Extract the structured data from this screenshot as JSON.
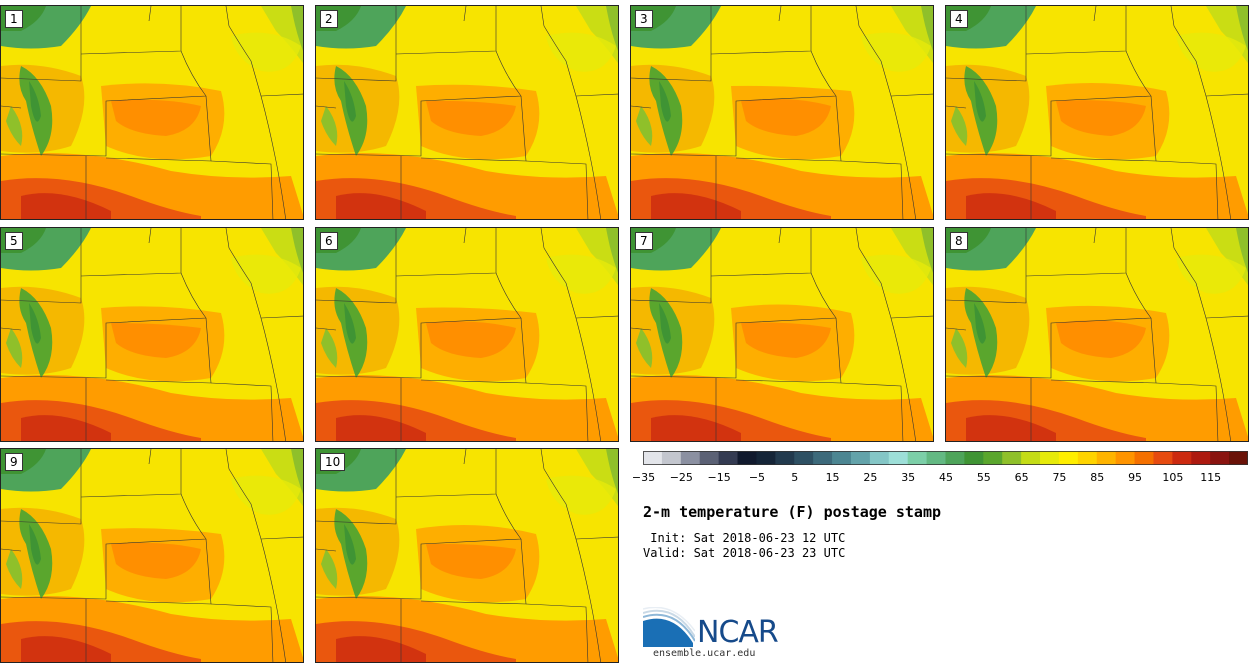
{
  "panels": [
    {
      "label": "1"
    },
    {
      "label": "2"
    },
    {
      "label": "3"
    },
    {
      "label": "4"
    },
    {
      "label": "5"
    },
    {
      "label": "6"
    },
    {
      "label": "7"
    },
    {
      "label": "8"
    },
    {
      "label": "9"
    },
    {
      "label": "10"
    }
  ],
  "colorbar": {
    "colors": [
      "#e3e5ea",
      "#c3c6ce",
      "#8b90a1",
      "#5b6175",
      "#343b52",
      "#111a2e",
      "#152538",
      "#223a4e",
      "#2e5063",
      "#3d6a7b",
      "#4c8692",
      "#63a3aa",
      "#84c6c6",
      "#9ddfd8",
      "#7ccfa8",
      "#63b983",
      "#4ea45a",
      "#3f9434",
      "#5aa62d",
      "#8fc02a",
      "#c4dc16",
      "#e6ea0a",
      "#ffee00",
      "#ffd400",
      "#ffb400",
      "#ff9400",
      "#f57000",
      "#e64b10",
      "#cc2a10",
      "#ad1a10",
      "#8a1410",
      "#6a1208"
    ],
    "ticks": [
      "−35",
      "−25",
      "−15",
      "−5",
      "5",
      "15",
      "25",
      "35",
      "45",
      "55",
      "65",
      "75",
      "85",
      "95",
      "105",
      "115"
    ]
  },
  "title": "2-m temperature (F) postage stamp",
  "init": " Init: Sat 2018-06-23 12 UTC",
  "valid": "Valid: Sat 2018-06-23 23 UTC",
  "logo_text": "NCAR",
  "url": "ensemble.ucar.edu"
}
